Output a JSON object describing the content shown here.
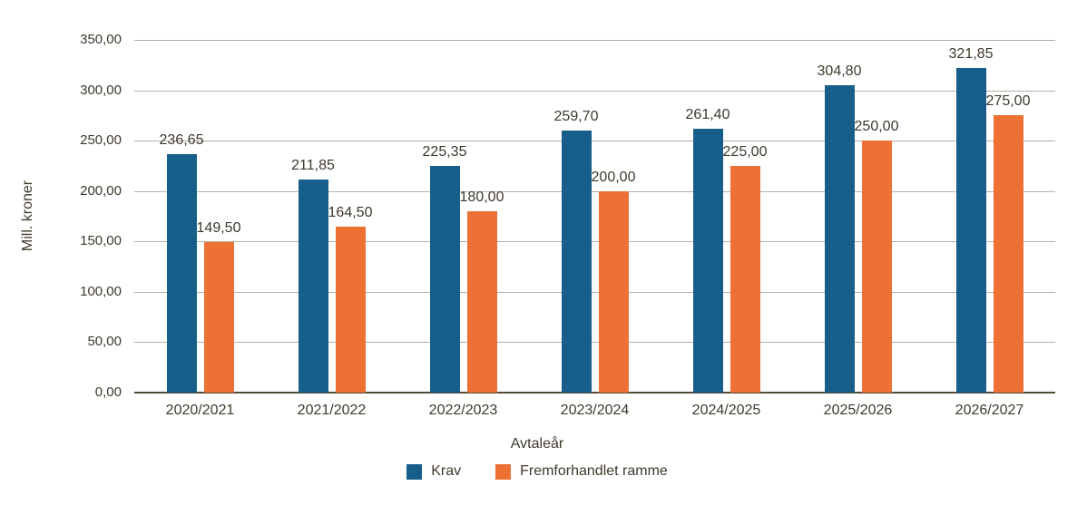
{
  "chart_data": {
    "type": "bar",
    "title": "",
    "xlabel": "Avtaleår",
    "ylabel": "Mill. kroner",
    "categories": [
      "2020/2021",
      "2021/2022",
      "2022/2023",
      "2023/2024",
      "2024/2025",
      "2025/2026",
      "2026/2027"
    ],
    "series": [
      {
        "name": "Krav",
        "color": "#175E8B",
        "values": [
          236.65,
          211.85,
          225.35,
          259.7,
          261.4,
          304.8,
          321.85
        ],
        "labels": [
          "236,65",
          "211,85",
          "225,35",
          "259,70",
          "261,40",
          "304,80",
          "321,85"
        ]
      },
      {
        "name": "Fremforhandlet ramme",
        "color": "#ED7134",
        "values": [
          149.5,
          164.5,
          180.0,
          200.0,
          225.0,
          250.0,
          275.0
        ],
        "labels": [
          "149,50",
          "164,50",
          "180,00",
          "200,00",
          "225,00",
          "250,00",
          "275,00"
        ]
      }
    ],
    "ylim": [
      0,
      350
    ],
    "yticks": [
      {
        "value": 0,
        "label": "0,00"
      },
      {
        "value": 50,
        "label": "50,00"
      },
      {
        "value": 100,
        "label": "100,00"
      },
      {
        "value": 150,
        "label": "150,00"
      },
      {
        "value": 200,
        "label": "200,00"
      },
      {
        "value": 250,
        "label": "250,00"
      },
      {
        "value": 300,
        "label": "300,00"
      },
      {
        "value": 350,
        "label": "350,00"
      }
    ],
    "grid": "horizontal",
    "legend_position": "bottom-center",
    "colors": {
      "gridline": "#B3B0A4",
      "axis_line": "#514B38",
      "text": "#3E392B"
    }
  }
}
